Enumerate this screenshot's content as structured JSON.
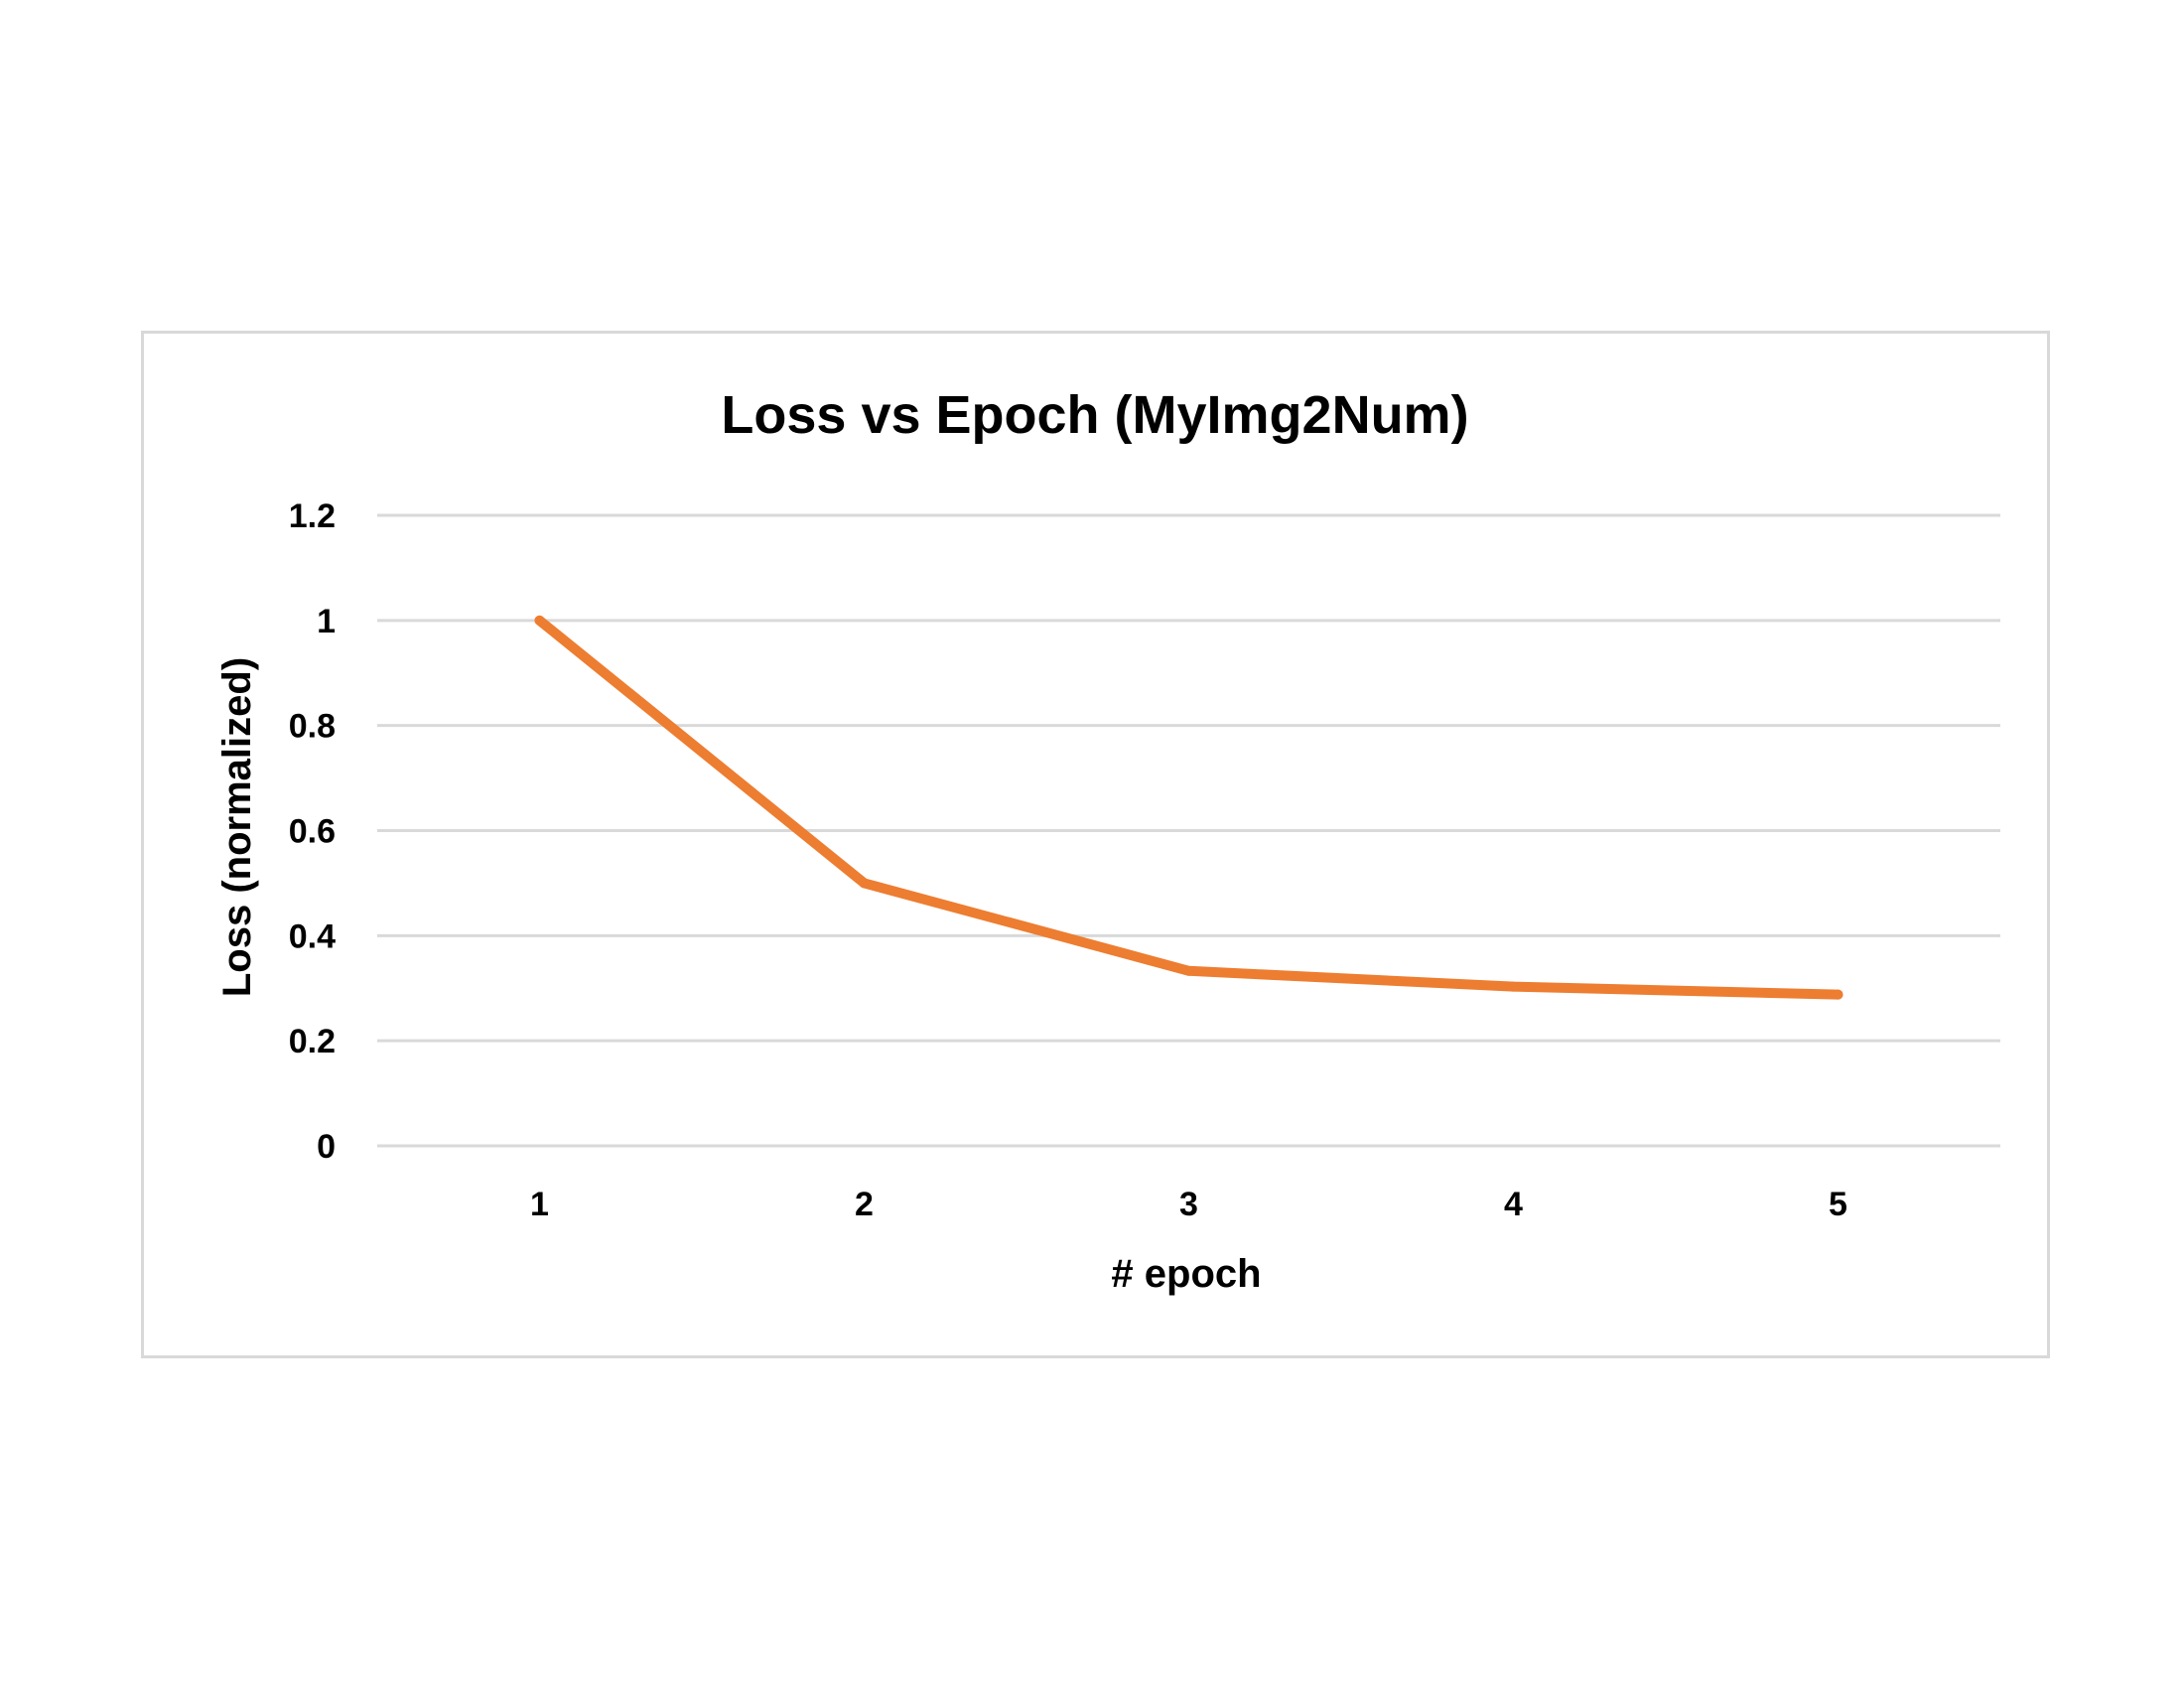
{
  "chart_data": {
    "type": "line",
    "title": "Loss vs Epoch (MyImg2Num)",
    "xlabel": "# epoch",
    "ylabel": "Loss (normalized)",
    "categories": [
      "1",
      "2",
      "3",
      "4",
      "5"
    ],
    "series": [
      {
        "values": [
          1.0,
          0.5,
          0.333,
          0.303,
          0.288
        ]
      }
    ],
    "ylim": [
      0,
      1.2
    ],
    "yticks": [
      "0",
      "0.2",
      "0.4",
      "0.6",
      "0.8",
      "1",
      "1.2"
    ],
    "grid": "horizontal",
    "legend": "none",
    "colors": {
      "series": "#ED7D31",
      "gridline": "#d9d9d9",
      "frame": "#d9d9d9",
      "text": "#000000"
    }
  }
}
